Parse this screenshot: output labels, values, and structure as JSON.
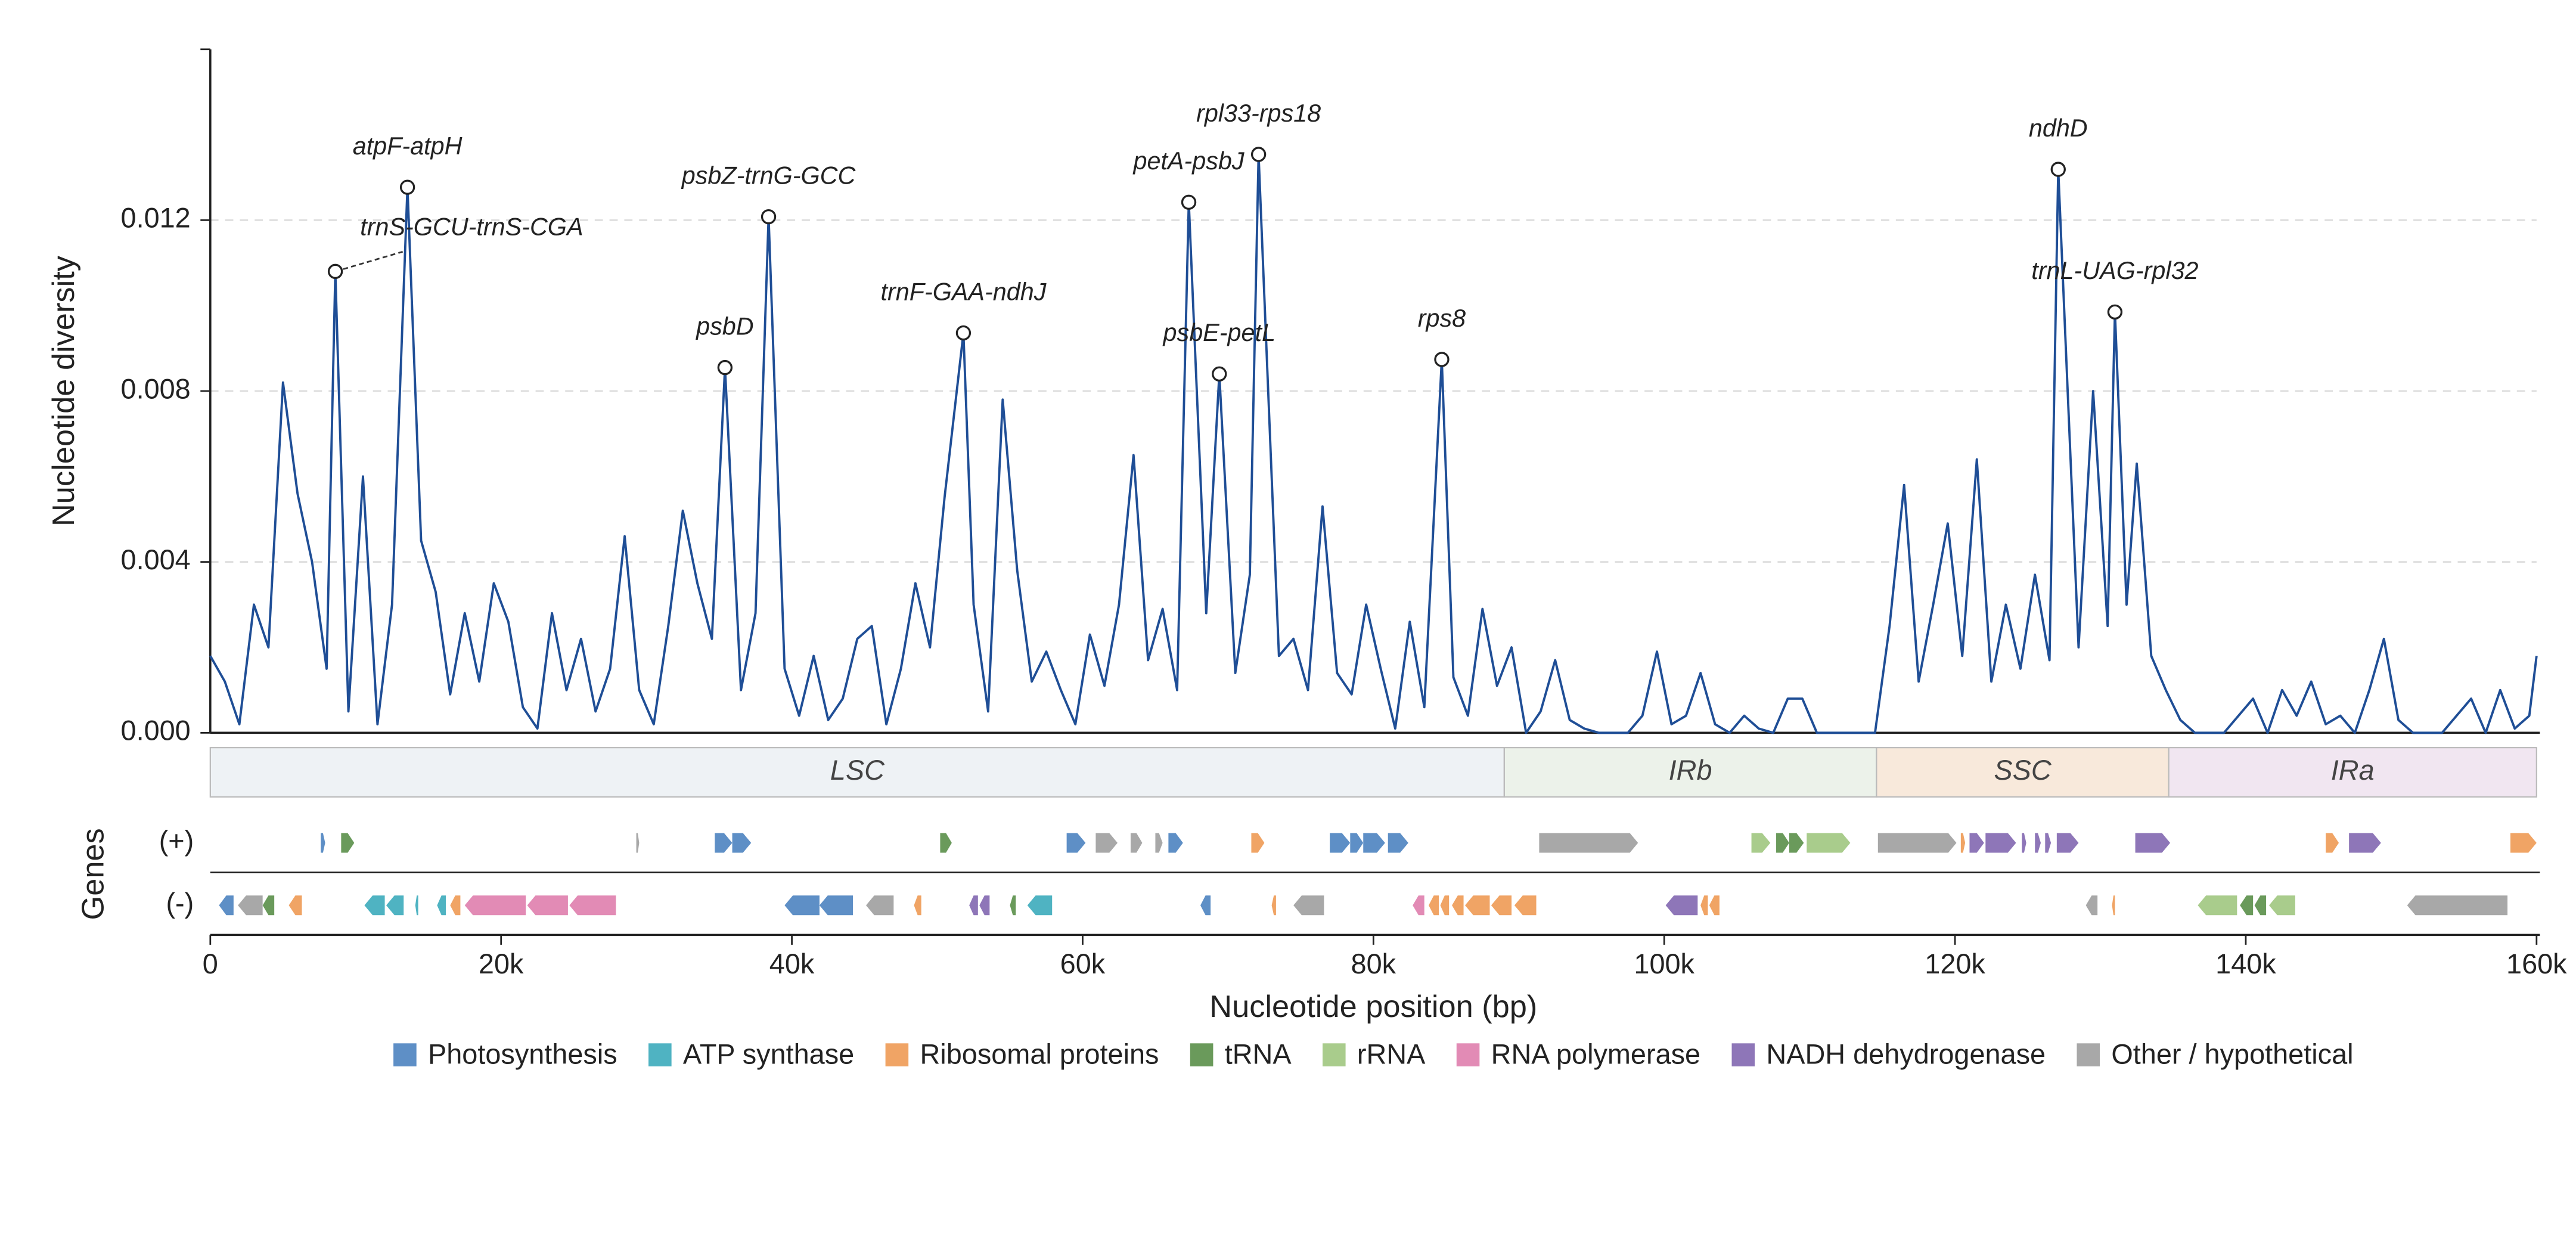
{
  "chart_data": {
    "type": "line",
    "y_label": "Nucleotide diversity",
    "x_label": "Nucleotide position (bp)",
    "track_title": "Genes",
    "color": "#1f4e96",
    "xlim": [
      0,
      160000
    ],
    "ylim": [
      0,
      0.016
    ],
    "xticks": [
      {
        "value": 0,
        "label": "0"
      },
      {
        "value": 20000,
        "label": "20k"
      },
      {
        "value": 40000,
        "label": "40k"
      },
      {
        "value": 60000,
        "label": "60k"
      },
      {
        "value": 80000,
        "label": "80k"
      },
      {
        "value": 100000,
        "label": "100k"
      },
      {
        "value": 120000,
        "label": "120k"
      },
      {
        "value": 140000,
        "label": "140k"
      },
      {
        "value": 160000,
        "label": "160k"
      }
    ],
    "yticks": [
      {
        "value": 0,
        "label": "0.000"
      },
      0.004,
      0.008,
      0.012
    ],
    "grid": true,
    "x": [
      0,
      1000,
      2000,
      3000,
      4000,
      5000,
      6000,
      7000,
      8000,
      8600,
      9500,
      10500,
      11500,
      12500,
      13560,
      14500,
      15500,
      16500,
      17500,
      18500,
      19500,
      20500,
      21500,
      22500,
      23500,
      24500,
      25500,
      26500,
      27500,
      28500,
      29500,
      30500,
      31500,
      32500,
      33500,
      34500,
      35400,
      36500,
      37500,
      38400,
      39500,
      40500,
      41500,
      42500,
      43500,
      44500,
      45500,
      46500,
      47500,
      48500,
      49500,
      50500,
      51800,
      52500,
      53500,
      54500,
      55500,
      56500,
      57500,
      58500,
      59500,
      60500,
      61500,
      62500,
      63500,
      64500,
      65500,
      66500,
      67300,
      68500,
      69400,
      70500,
      71500,
      72100,
      73500,
      74500,
      75500,
      76500,
      77500,
      78500,
      79500,
      80500,
      81500,
      82500,
      83500,
      84700,
      85500,
      86500,
      87500,
      88500,
      89500,
      90500,
      91500,
      92500,
      93500,
      94500,
      95500,
      96500,
      97500,
      98500,
      99500,
      100500,
      101500,
      102500,
      103500,
      104500,
      105500,
      106500,
      107500,
      108500,
      109500,
      110500,
      111500,
      112500,
      113500,
      114500,
      115500,
      116500,
      117500,
      118500,
      119500,
      120500,
      121500,
      122500,
      123500,
      124500,
      125500,
      126500,
      127100,
      128500,
      129500,
      130500,
      131000,
      131800,
      132500,
      133500,
      134500,
      135500,
      136500,
      137500,
      138500,
      139500,
      140500,
      141500,
      142500,
      143500,
      144500,
      145500,
      146500,
      147500,
      148500,
      149500,
      150500,
      151500,
      152500,
      153500,
      154500,
      155500,
      156500,
      157500,
      158500,
      159500,
      160000
    ],
    "values": [
      0.0018,
      0.0012,
      0.0002,
      0.003,
      0.002,
      0.0082,
      0.0056,
      0.004,
      0.0015,
      0.0108,
      0.0005,
      0.006,
      0.0002,
      0.003,
      0.01277,
      0.0045,
      0.0033,
      0.0009,
      0.0028,
      0.0012,
      0.0035,
      0.0026,
      0.0006,
      0.0001,
      0.0028,
      0.001,
      0.0022,
      0.0005,
      0.0015,
      0.0046,
      0.001,
      0.0002,
      0.0025,
      0.0052,
      0.0035,
      0.0022,
      0.00855,
      0.001,
      0.0028,
      0.01208,
      0.0015,
      0.0004,
      0.0018,
      0.0003,
      0.0008,
      0.0022,
      0.0025,
      0.0002,
      0.0015,
      0.0035,
      0.002,
      0.0055,
      0.00936,
      0.003,
      0.0005,
      0.0078,
      0.0038,
      0.0012,
      0.0019,
      0.001,
      0.0002,
      0.0023,
      0.0011,
      0.003,
      0.0065,
      0.0017,
      0.0029,
      0.001,
      0.01242,
      0.0028,
      0.0084,
      0.0014,
      0.0037,
      0.01354,
      0.0018,
      0.0022,
      0.001,
      0.0053,
      0.0014,
      0.0009,
      0.003,
      0.0015,
      0.0001,
      0.0026,
      0.0006,
      0.00874,
      0.0013,
      0.0004,
      0.0029,
      0.0011,
      0.002,
      0,
      0.0005,
      0.0017,
      0.0003,
      0.0001,
      0,
      0,
      0,
      0.0004,
      0.0019,
      0.0002,
      0.0004,
      0.0014,
      0.0002,
      0,
      0.0004,
      0.0001,
      0,
      0.0008,
      0.0008,
      0,
      0,
      0,
      0,
      0,
      0.0025,
      0.0058,
      0.0012,
      0.003,
      0.0049,
      0.0018,
      0.0064,
      0.0012,
      0.003,
      0.0015,
      0.0037,
      0.0017,
      0.01319,
      0.002,
      0.008,
      0.0025,
      0.00985,
      0.003,
      0.0063,
      0.0018,
      0.001,
      0.0003,
      0,
      0,
      0,
      0.0004,
      0.0008,
      0,
      0.001,
      0.0004,
      0.0012,
      0.0002,
      0.0004,
      0,
      0.001,
      0.0022,
      0.0003,
      0,
      0,
      0,
      0.0004,
      0.0008,
      0,
      0.001,
      0.0001,
      0.0004,
      0.0018
    ],
    "annotations": [
      {
        "text": "atpF-atpH",
        "x": 13560,
        "y": 0.01277
      },
      {
        "text": "trnS-GCU-trnS-CGA",
        "x": 8600,
        "y": 0.0108
      },
      {
        "text": "psbD",
        "x": 35400,
        "y": 0.00855
      },
      {
        "text": "psbZ-trnG-GCC",
        "x": 38400,
        "y": 0.01208
      },
      {
        "text": "trnF-GAA-ndhJ",
        "x": 51800,
        "y": 0.00936
      },
      {
        "text": "petA-psbJ",
        "x": 67300,
        "y": 0.01242
      },
      {
        "text": "psbE-petL",
        "x": 69400,
        "y": 0.0084
      },
      {
        "text": "rpl33-rps18",
        "x": 72100,
        "y": 0.01354
      },
      {
        "text": "rps8",
        "x": 84700,
        "y": 0.00874
      },
      {
        "text": "ndhD",
        "x": 127100,
        "y": 0.01319
      },
      {
        "text": "trnL-UAG-rpl32",
        "x": 131000,
        "y": 0.00985
      }
    ],
    "regions": [
      {
        "name": "LSC",
        "start": 0,
        "end": 89000,
        "color": "#eef2f5"
      },
      {
        "name": "IRb",
        "start": 89000,
        "end": 114600,
        "color": "#ecf2ea"
      },
      {
        "name": "SSC",
        "start": 114600,
        "end": 134700,
        "color": "#f8e9db"
      },
      {
        "name": "IRa",
        "start": 134700,
        "end": 160000,
        "color": "#f1e6f1"
      }
    ],
    "tracks": [
      "(+)",
      "(-)"
    ],
    "categories": [
      {
        "name": "Photosynthesis",
        "color": "#5e8fc6"
      },
      {
        "name": "ATP synthase",
        "color": "#4fb3c2"
      },
      {
        "name": "Ribosomal proteins",
        "color": "#f0a465"
      },
      {
        "name": "tRNA",
        "color": "#6a9a5b"
      },
      {
        "name": "rRNA",
        "color": "#a9cc8c"
      },
      {
        "name": "RNA polymerase",
        "color": "#e28bb5"
      },
      {
        "name": "NADH dehydrogenase",
        "color": "#8e76b8"
      },
      {
        "name": "Other / hypothetical",
        "color": "#a8a8a8"
      }
    ],
    "genes": [
      {
        "start": 7600,
        "end": 7900,
        "track": 0,
        "category": 0
      },
      {
        "start": 9000,
        "end": 9900,
        "track": 0,
        "category": 3
      },
      {
        "start": 29300,
        "end": 29500,
        "track": 0,
        "category": 7
      },
      {
        "start": 34700,
        "end": 35900,
        "track": 0,
        "category": 0
      },
      {
        "start": 35900,
        "end": 37200,
        "track": 0,
        "category": 0
      },
      {
        "start": 50200,
        "end": 51000,
        "track": 0,
        "category": 3
      },
      {
        "start": 58900,
        "end": 60200,
        "track": 0,
        "category": 0
      },
      {
        "start": 60900,
        "end": 62400,
        "track": 0,
        "category": 7
      },
      {
        "start": 63300,
        "end": 64100,
        "track": 0,
        "category": 7
      },
      {
        "start": 65000,
        "end": 65500,
        "track": 0,
        "category": 7
      },
      {
        "start": 65900,
        "end": 66900,
        "track": 0,
        "category": 0
      },
      {
        "start": 71600,
        "end": 72500,
        "track": 0,
        "category": 2
      },
      {
        "start": 77000,
        "end": 78400,
        "track": 0,
        "category": 0
      },
      {
        "start": 78400,
        "end": 79300,
        "track": 0,
        "category": 0
      },
      {
        "start": 79300,
        "end": 80800,
        "track": 0,
        "category": 0
      },
      {
        "start": 81000,
        "end": 82400,
        "track": 0,
        "category": 0
      },
      {
        "start": 91400,
        "end": 98200,
        "track": 0,
        "category": 7
      },
      {
        "start": 106000,
        "end": 107300,
        "track": 0,
        "category": 4
      },
      {
        "start": 107700,
        "end": 108600,
        "track": 0,
        "category": 3
      },
      {
        "start": 108600,
        "end": 109600,
        "track": 0,
        "category": 3
      },
      {
        "start": 109800,
        "end": 112800,
        "track": 0,
        "category": 4
      },
      {
        "start": 114700,
        "end": 120100,
        "track": 0,
        "category": 7
      },
      {
        "start": 120400,
        "end": 120700,
        "track": 0,
        "category": 2
      },
      {
        "start": 121000,
        "end": 122000,
        "track": 0,
        "category": 6
      },
      {
        "start": 122100,
        "end": 124200,
        "track": 0,
        "category": 6
      },
      {
        "start": 124600,
        "end": 124900,
        "track": 0,
        "category": 6
      },
      {
        "start": 125500,
        "end": 125900,
        "track": 0,
        "category": 6
      },
      {
        "start": 126200,
        "end": 126600,
        "track": 0,
        "category": 6
      },
      {
        "start": 127000,
        "end": 128500,
        "track": 0,
        "category": 6
      },
      {
        "start": 132400,
        "end": 134800,
        "track": 0,
        "category": 6
      },
      {
        "start": 145500,
        "end": 146400,
        "track": 0,
        "category": 2
      },
      {
        "start": 147100,
        "end": 149300,
        "track": 0,
        "category": 6
      },
      {
        "start": 158200,
        "end": 160000,
        "track": 0,
        "category": 2
      },
      {
        "start": 600,
        "end": 1600,
        "track": 1,
        "category": 0
      },
      {
        "start": 1900,
        "end": 3600,
        "track": 1,
        "category": 7
      },
      {
        "start": 3600,
        "end": 4400,
        "track": 1,
        "category": 3
      },
      {
        "start": 5400,
        "end": 6300,
        "track": 1,
        "category": 2
      },
      {
        "start": 10600,
        "end": 12000,
        "track": 1,
        "category": 1
      },
      {
        "start": 12100,
        "end": 13300,
        "track": 1,
        "category": 1
      },
      {
        "start": 14100,
        "end": 14300,
        "track": 1,
        "category": 1
      },
      {
        "start": 15600,
        "end": 16200,
        "track": 1,
        "category": 1
      },
      {
        "start": 16500,
        "end": 17200,
        "track": 1,
        "category": 2
      },
      {
        "start": 17500,
        "end": 21700,
        "track": 1,
        "category": 5
      },
      {
        "start": 21800,
        "end": 24600,
        "track": 1,
        "category": 5
      },
      {
        "start": 24700,
        "end": 27900,
        "track": 1,
        "category": 5
      },
      {
        "start": 39500,
        "end": 41900,
        "track": 1,
        "category": 0
      },
      {
        "start": 41900,
        "end": 44200,
        "track": 1,
        "category": 0
      },
      {
        "start": 45100,
        "end": 47000,
        "track": 1,
        "category": 7
      },
      {
        "start": 48400,
        "end": 48900,
        "track": 1,
        "category": 2
      },
      {
        "start": 52200,
        "end": 52800,
        "track": 1,
        "category": 6
      },
      {
        "start": 52900,
        "end": 53600,
        "track": 1,
        "category": 6
      },
      {
        "start": 55000,
        "end": 55400,
        "track": 1,
        "category": 3
      },
      {
        "start": 56200,
        "end": 57900,
        "track": 1,
        "category": 1
      },
      {
        "start": 68100,
        "end": 68800,
        "track": 1,
        "category": 0
      },
      {
        "start": 73000,
        "end": 73300,
        "track": 1,
        "category": 2
      },
      {
        "start": 74500,
        "end": 76600,
        "track": 1,
        "category": 7
      },
      {
        "start": 82700,
        "end": 83500,
        "track": 1,
        "category": 5
      },
      {
        "start": 83800,
        "end": 84500,
        "track": 1,
        "category": 2
      },
      {
        "start": 84600,
        "end": 85200,
        "track": 1,
        "category": 2
      },
      {
        "start": 85400,
        "end": 86200,
        "track": 1,
        "category": 2
      },
      {
        "start": 86300,
        "end": 88000,
        "track": 1,
        "category": 2
      },
      {
        "start": 88100,
        "end": 89500,
        "track": 1,
        "category": 2
      },
      {
        "start": 89700,
        "end": 91200,
        "track": 1,
        "category": 2
      },
      {
        "start": 100100,
        "end": 102300,
        "track": 1,
        "category": 6
      },
      {
        "start": 102500,
        "end": 103000,
        "track": 1,
        "category": 2
      },
      {
        "start": 103100,
        "end": 103800,
        "track": 1,
        "category": 2
      },
      {
        "start": 129000,
        "end": 129800,
        "track": 1,
        "category": 7
      },
      {
        "start": 130800,
        "end": 131000,
        "track": 1,
        "category": 2
      },
      {
        "start": 136700,
        "end": 139400,
        "track": 1,
        "category": 4
      },
      {
        "start": 139600,
        "end": 140500,
        "track": 1,
        "category": 3
      },
      {
        "start": 140600,
        "end": 141400,
        "track": 1,
        "category": 3
      },
      {
        "start": 141600,
        "end": 143400,
        "track": 1,
        "category": 4
      },
      {
        "start": 151100,
        "end": 158000,
        "track": 1,
        "category": 7
      }
    ]
  }
}
